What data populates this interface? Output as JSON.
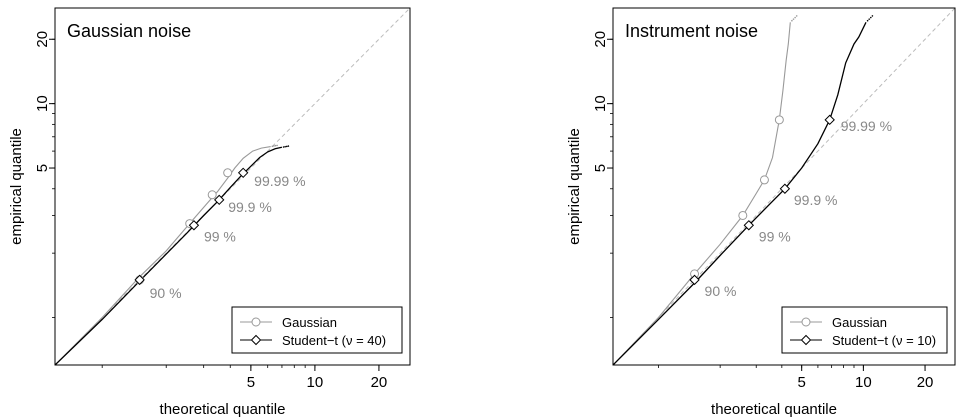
{
  "chart_data": [
    {
      "type": "line",
      "title": "Gaussian noise",
      "xlabel": "theoretical quantile",
      "ylabel": "empirical quantile",
      "xscale": "log",
      "yscale": "log",
      "xlim": [
        0.6,
        28
      ],
      "ylim": [
        0.6,
        28
      ],
      "x_ticks": [
        5,
        10,
        20
      ],
      "y_ticks": [
        5,
        10,
        20
      ],
      "reference_line": "identity, dashed grey",
      "legend_position": "bottom-right",
      "series": [
        {
          "name": "Gaussian",
          "color": "#999999",
          "marker": "circle",
          "x": [
            0.6,
            1.0,
            1.5,
            2.0,
            2.7,
            3.1,
            3.5,
            3.9,
            4.2,
            4.6,
            5.1,
            5.6,
            6.2
          ],
          "y": [
            0.6,
            1.0,
            1.55,
            2.05,
            2.9,
            3.4,
            3.9,
            4.5,
            5.0,
            5.55,
            6.0,
            6.2,
            6.3
          ]
        },
        {
          "name": "Student-t (ν = 40)",
          "color": "#000000",
          "marker": "diamond",
          "x": [
            0.6,
            1.0,
            1.5,
            2.0,
            2.5,
            3.0,
            3.5,
            4.0,
            4.5,
            5.0,
            5.5,
            6.0,
            6.5,
            7.0
          ],
          "y": [
            0.6,
            0.98,
            1.48,
            1.98,
            2.48,
            3.0,
            3.5,
            4.05,
            4.6,
            5.1,
            5.6,
            5.95,
            6.15,
            6.25
          ]
        }
      ],
      "markers": [
        {
          "label": "90 %",
          "gaussian": [
            1.5,
            1.5
          ],
          "student": [
            1.5,
            1.5
          ]
        },
        {
          "label": "99 %",
          "gaussian": [
            2.58,
            2.75
          ],
          "student": [
            2.7,
            2.7
          ]
        },
        {
          "label": "99.9 %",
          "gaussian": [
            3.29,
            3.75
          ],
          "student": [
            3.55,
            3.55
          ]
        },
        {
          "label": "99.99 %",
          "gaussian": [
            3.89,
            4.75
          ],
          "student": [
            4.6,
            4.75
          ]
        }
      ],
      "legend": [
        "Gaussian",
        "Student−t (ν = 40)"
      ]
    },
    {
      "type": "line",
      "title": "Instrument noise",
      "xlabel": "theoretical quantile",
      "ylabel": "empirical quantile",
      "xscale": "log",
      "yscale": "log",
      "xlim": [
        0.6,
        28
      ],
      "ylim": [
        0.6,
        28
      ],
      "x_ticks": [
        5,
        10,
        20
      ],
      "y_ticks": [
        5,
        10,
        20
      ],
      "reference_line": "identity, dashed grey",
      "legend_position": "bottom-right",
      "series": [
        {
          "name": "Gaussian",
          "color": "#999999",
          "marker": "circle",
          "x": [
            0.6,
            1.0,
            1.5,
            2.0,
            2.58,
            3.0,
            3.29,
            3.6,
            3.89,
            4.05,
            4.2,
            4.3,
            4.4
          ],
          "y": [
            0.6,
            1.0,
            1.6,
            2.2,
            3.0,
            3.8,
            4.4,
            5.6,
            8.4,
            11.5,
            16.0,
            19.0,
            24.0
          ]
        },
        {
          "name": "Student-t (ν = 10)",
          "color": "#000000",
          "marker": "diamond",
          "x": [
            0.6,
            1.0,
            1.5,
            2.0,
            2.76,
            3.5,
            4.14,
            5.0,
            6.0,
            6.85,
            7.5,
            8.2,
            9.0,
            9.5,
            10.3
          ],
          "y": [
            0.6,
            0.98,
            1.45,
            1.95,
            2.7,
            3.4,
            4.0,
            5.0,
            6.5,
            8.4,
            11.0,
            15.5,
            19.0,
            20.5,
            24.0
          ]
        }
      ],
      "markers": [
        {
          "label": "90 %",
          "gaussian": [
            1.5,
            1.6
          ],
          "student": [
            1.5,
            1.5
          ]
        },
        {
          "label": "99 %",
          "gaussian": [
            2.58,
            3.0
          ],
          "student": [
            2.76,
            2.7
          ]
        },
        {
          "label": "99.9 %",
          "gaussian": [
            3.29,
            4.4
          ],
          "student": [
            4.14,
            4.0
          ]
        },
        {
          "label": "99.99 %",
          "gaussian": [
            3.89,
            8.4
          ],
          "student": [
            6.85,
            8.4
          ]
        }
      ],
      "legend": [
        "Gaussian",
        "Student−t (ν = 10)"
      ]
    }
  ]
}
